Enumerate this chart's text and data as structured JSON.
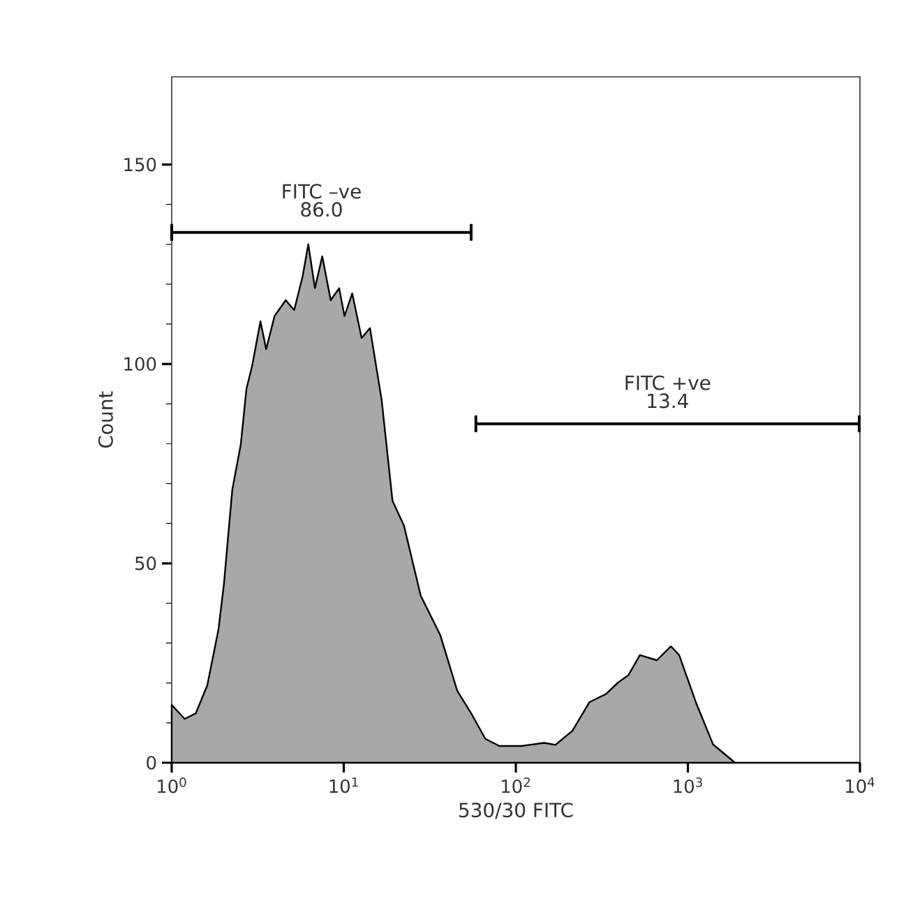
{
  "chart_data": {
    "type": "area",
    "xlabel": "530/30 FITC",
    "ylabel": "Count",
    "log": "x",
    "xlim": [
      1,
      10000
    ],
    "ylim": [
      0,
      172
    ],
    "xticks": [
      {
        "value": 1,
        "label": "10$^{0}$"
      },
      {
        "value": 10,
        "label": "10$^{1}$"
      },
      {
        "value": 100,
        "label": "10$^{2}$"
      },
      {
        "value": 1000,
        "label": "10$^{3}$"
      },
      {
        "value": 10000,
        "label": "10$^{4}$"
      }
    ],
    "yticks": [
      0,
      50,
      100,
      150
    ],
    "series": [
      {
        "color": "#a8a8a8",
        "x": [
          1,
          1.19,
          1.38,
          1.61,
          1.87,
          2.01,
          2.25,
          2.52,
          2.72,
          2.93,
          3.28,
          3.54,
          3.96,
          4.6,
          5.15,
          5.77,
          6.22,
          6.8,
          7.5,
          8.4,
          9.4,
          10.1,
          11.2,
          12.7,
          14.2,
          16.6,
          19.2,
          22.4,
          28,
          36.4,
          45.7,
          55,
          66.5,
          80.2,
          108,
          146,
          170,
          213,
          268,
          336,
          390,
          452,
          526,
          660,
          796,
          890,
          1112,
          1400,
          1880,
          10000
        ],
        "values": [
          14.5,
          11,
          12.4,
          19.4,
          33.4,
          44.7,
          68.5,
          79.8,
          93.8,
          99.4,
          110.7,
          103.7,
          112,
          116,
          113.5,
          122,
          130,
          119,
          127,
          116,
          119,
          112,
          117.7,
          106.5,
          109,
          91,
          65.7,
          59.4,
          41.9,
          32,
          18,
          12.4,
          6,
          4.2,
          4.2,
          5,
          4.5,
          8,
          15.2,
          17.3,
          20,
          22,
          27,
          25.7,
          29.2,
          27,
          15.2,
          4.6,
          0,
          0
        ]
      },
      {
        "type": "line",
        "name": "FITC –ve",
        "color": "#000000",
        "x": [
          1,
          55
        ],
        "values": [
          133,
          133
        ]
      },
      {
        "type": "line",
        "name": "FITC +ve",
        "color": "#000000",
        "x": [
          58.6,
          9900
        ],
        "values": [
          85,
          85
        ]
      }
    ],
    "annotations": [
      "86.0",
      "13.4"
    ]
  }
}
